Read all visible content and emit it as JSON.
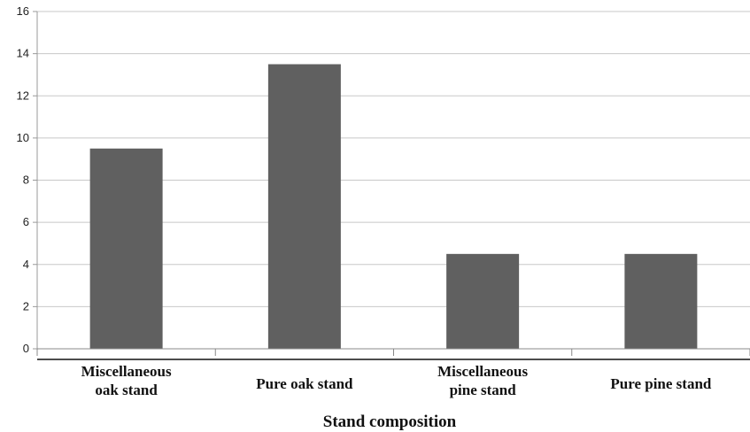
{
  "chart_data": {
    "type": "bar",
    "categories": [
      [
        "Miscellaneous",
        "oak stand"
      ],
      [
        "Pure oak stand"
      ],
      [
        "Miscellaneous",
        "pine stand"
      ],
      [
        "Pure pine stand"
      ]
    ],
    "values": [
      9.5,
      13.5,
      4.5,
      4.5
    ],
    "xlabel": "Stand composition",
    "ylabel": "",
    "ylim": [
      0,
      16
    ],
    "yticks": [
      "0",
      "2",
      "4",
      "6",
      "8",
      "10",
      "12",
      "14",
      "16"
    ],
    "grid": true,
    "bar_color": "#606060",
    "grid_color": "#c8c8c8"
  }
}
